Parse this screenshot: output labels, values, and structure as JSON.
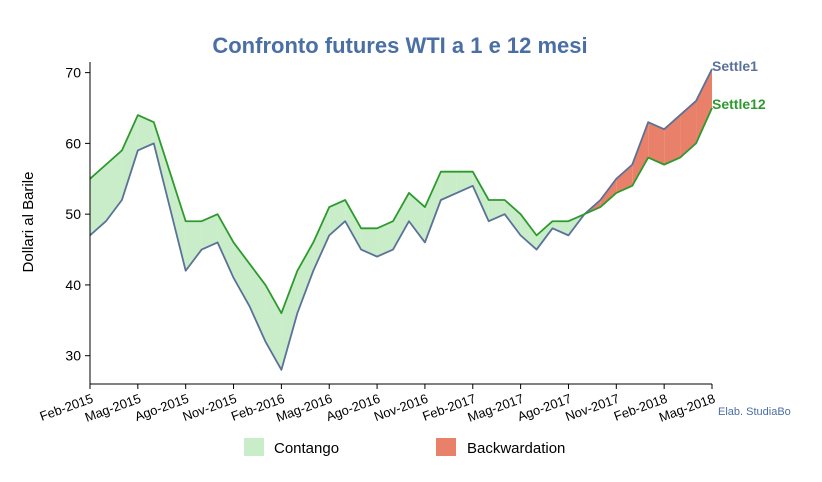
{
  "chart_data": {
    "type": "area",
    "title": "Confronto futures WTI a 1 e 12 mesi",
    "xlabel": "",
    "ylabel": "Dollari al Barile",
    "ylim": [
      26,
      71.5
    ],
    "yticks": [
      30,
      40,
      50,
      60,
      70
    ],
    "xticks": [
      "Feb-2015",
      "Mag-2015",
      "Ago-2015",
      "Nov-2015",
      "Feb-2016",
      "Mag-2016",
      "Ago-2016",
      "Nov-2016",
      "Feb-2017",
      "Mag-2017",
      "Ago-2017",
      "Nov-2017",
      "Feb-2018",
      "Mag-2018"
    ],
    "x": [
      "Feb-2015",
      "Mar-2015",
      "Apr-2015",
      "Mag-2015",
      "Giu-2015",
      "Lug-2015",
      "Ago-2015",
      "Set-2015",
      "Ott-2015",
      "Nov-2015",
      "Dic-2015",
      "Gen-2016",
      "Feb-2016",
      "Mar-2016",
      "Apr-2016",
      "Mag-2016",
      "Giu-2016",
      "Lug-2016",
      "Ago-2016",
      "Set-2016",
      "Ott-2016",
      "Nov-2016",
      "Dic-2016",
      "Gen-2017",
      "Feb-2017",
      "Mar-2017",
      "Apr-2017",
      "Mag-2017",
      "Giu-2017",
      "Lug-2017",
      "Ago-2017",
      "Set-2017",
      "Ott-2017",
      "Nov-2017",
      "Dic-2017",
      "Gen-2018",
      "Feb-2018",
      "Mar-2018",
      "Apr-2018",
      "Mag-2018"
    ],
    "series": [
      {
        "name": "Settle1",
        "color": "#5a7199",
        "values": [
          47,
          49,
          52,
          59,
          60,
          51,
          42,
          45,
          46,
          41,
          37,
          32,
          28,
          36,
          42,
          47,
          49,
          45,
          44,
          45,
          49,
          46,
          52,
          53,
          54,
          49,
          50,
          47,
          45,
          48,
          47,
          50,
          52,
          55,
          57,
          63,
          62,
          64,
          66,
          70.5
        ]
      },
      {
        "name": "Settle12",
        "color": "#2e9a2e",
        "values": [
          55,
          57,
          59,
          64,
          63,
          56,
          49,
          49,
          50,
          46,
          43,
          40,
          36,
          42,
          46,
          51,
          52,
          48,
          48,
          49,
          53,
          51,
          56,
          56,
          56,
          52,
          52,
          50,
          47,
          49,
          49,
          50,
          51,
          53,
          54,
          58,
          57,
          58,
          60,
          65
        ]
      }
    ],
    "legend": [
      {
        "label": "Contango",
        "color": "#c8edc8"
      },
      {
        "label": "Backwardation",
        "color": "#e8806a"
      }
    ],
    "legend_position": "bottom",
    "grid": false,
    "credit": "Elab. StudiaBo"
  }
}
